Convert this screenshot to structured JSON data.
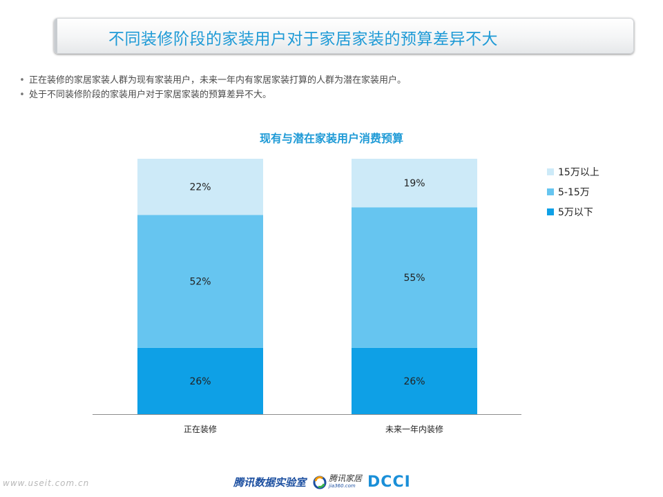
{
  "page": {
    "title": "不同装修阶段的家装用户对于家居家装的预算差异不大",
    "bullets": [
      "正在装修的家居家装人群为现有家装用户，未来一年内有家居家装打算的人群为潜在家装用户。",
      "处于不同装修阶段的家装用户对于家居家装的预算差异不大。"
    ]
  },
  "chart_data": {
    "type": "bar",
    "stacked": true,
    "title": "现有与潜在家装用户消费预算",
    "categories": [
      "正在装修",
      "未来一年内装修"
    ],
    "series": [
      {
        "name": "5万以下",
        "values": [
          26,
          26
        ],
        "color": "#0ea0e6"
      },
      {
        "name": "5-15万",
        "values": [
          52,
          55
        ],
        "color": "#66c5f0"
      },
      {
        "name": "15万以上",
        "values": [
          22,
          19
        ],
        "color": "#cdeaf8"
      }
    ],
    "legend_order": [
      "15万以上",
      "5-15万",
      "5万以下"
    ],
    "value_suffix": "%",
    "ylim": [
      0,
      100
    ],
    "grid": false,
    "legend_position": "right"
  },
  "footer": {
    "site": "www.useit.com.cn",
    "lab": "腾讯数据实验室",
    "home_name": "腾讯家居",
    "home_url": "jia360.com",
    "dcci": "DCCI"
  }
}
